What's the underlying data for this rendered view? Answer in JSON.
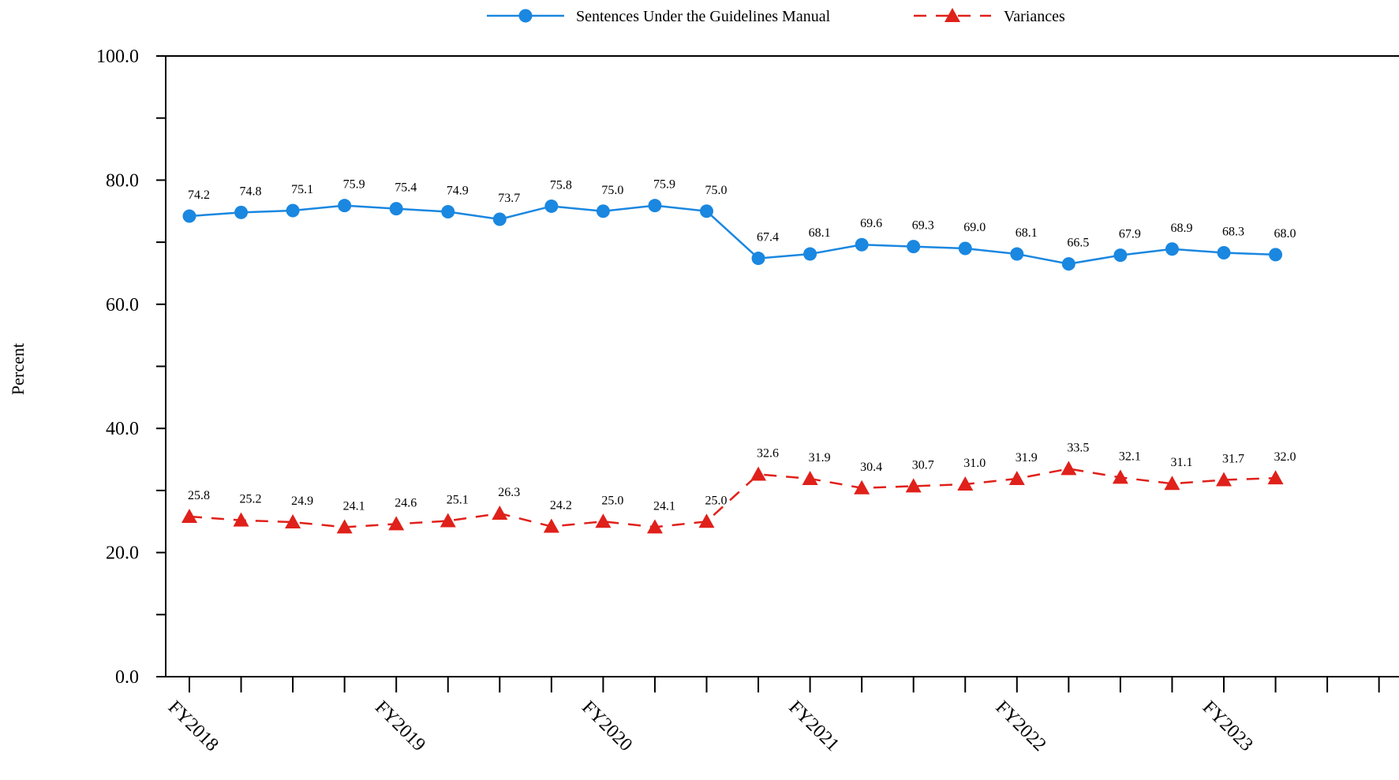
{
  "chart_data": {
    "type": "line",
    "title": "",
    "xlabel": "",
    "ylabel": "Percent",
    "ylim": [
      0,
      100
    ],
    "yticks": [
      "0.0",
      "20.0",
      "40.0",
      "60.0",
      "80.0",
      "100.0"
    ],
    "x_tick_labels": [
      "FY2018",
      "FY2019",
      "FY2020",
      "FY2021",
      "FY2022",
      "FY2023"
    ],
    "points_per_label": 4,
    "slot_count": 24,
    "grid": false,
    "legend": "top-center",
    "series": [
      {
        "name": "Sentences Under the Guidelines Manual",
        "color": "#1a87e0",
        "marker": "circle",
        "dash": "solid",
        "values": [
          74.2,
          74.8,
          75.1,
          75.9,
          75.4,
          74.9,
          73.7,
          75.8,
          75.0,
          75.9,
          75.0,
          67.4,
          68.1,
          69.6,
          69.3,
          69.0,
          68.1,
          66.5,
          67.9,
          68.9,
          68.3,
          68.0
        ],
        "labels": [
          "74.2",
          "74.8",
          "75.1",
          "75.9",
          "75.4",
          "74.9",
          "73.7",
          "75.8",
          "75.0",
          "75.9",
          "75.0",
          "67.4",
          "68.1",
          "69.6",
          "69.3",
          "69.0",
          "68.1",
          "66.5",
          "67.9",
          "68.9",
          "68.3",
          "68.0"
        ]
      },
      {
        "name": "Variances",
        "color": "#e0201a",
        "marker": "triangle",
        "dash": "dashed",
        "values": [
          25.8,
          25.2,
          24.9,
          24.1,
          24.6,
          25.1,
          26.3,
          24.2,
          25.0,
          24.1,
          25.0,
          32.6,
          31.9,
          30.4,
          30.7,
          31.0,
          31.9,
          33.5,
          32.1,
          31.1,
          31.7,
          32.0
        ],
        "labels": [
          "25.8",
          "25.2",
          "24.9",
          "24.1",
          "24.6",
          "25.1",
          "26.3",
          "24.2",
          "25.0",
          "24.1",
          "25.0",
          "32.6",
          "31.9",
          "30.4",
          "30.7",
          "31.0",
          "31.9",
          "33.5",
          "32.1",
          "31.1",
          "31.7",
          "32.0"
        ]
      }
    ]
  }
}
